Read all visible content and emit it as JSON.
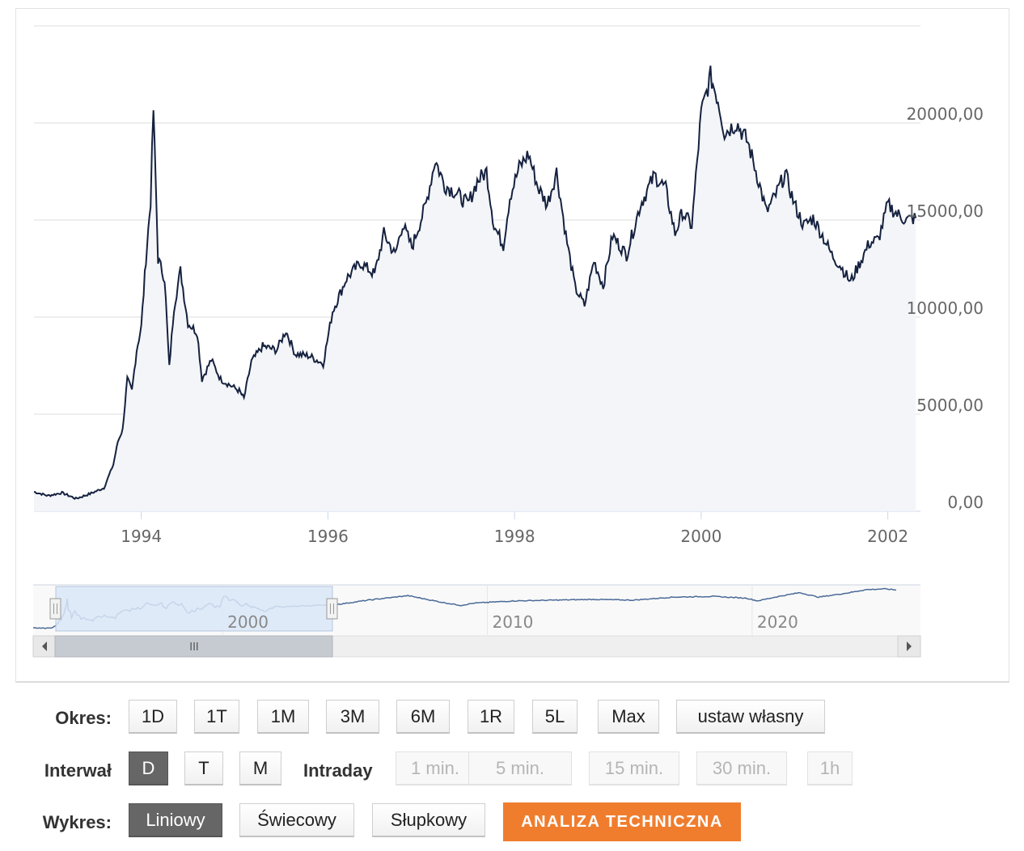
{
  "chart_data": {
    "type": "line",
    "title": "",
    "xlabel": "",
    "ylabel": "",
    "ylim": [
      0,
      25000
    ],
    "grid": true,
    "y_ticks": [
      "0,00",
      "5000,00",
      "10000,00",
      "15000,00",
      "20000,00"
    ],
    "x_ticks": [
      "1994",
      "1996",
      "1998",
      "2000",
      "2002"
    ],
    "series": [
      {
        "values_xy": [
          [
            1992.85,
            1000
          ],
          [
            1993.0,
            800
          ],
          [
            1993.15,
            950
          ],
          [
            1993.3,
            650
          ],
          [
            1993.45,
            900
          ],
          [
            1993.6,
            1200
          ],
          [
            1993.7,
            2400
          ],
          [
            1993.75,
            3600
          ],
          [
            1993.8,
            4200
          ],
          [
            1993.85,
            6800
          ],
          [
            1993.9,
            6200
          ],
          [
            1993.95,
            8300
          ],
          [
            1994.0,
            9500
          ],
          [
            1994.05,
            13000
          ],
          [
            1994.1,
            16000
          ],
          [
            1994.13,
            20700
          ],
          [
            1994.18,
            13000
          ],
          [
            1994.25,
            12000
          ],
          [
            1994.3,
            7400
          ],
          [
            1994.35,
            10500
          ],
          [
            1994.42,
            12400
          ],
          [
            1994.5,
            9700
          ],
          [
            1994.6,
            9200
          ],
          [
            1994.65,
            6800
          ],
          [
            1994.75,
            7800
          ],
          [
            1994.85,
            6800
          ],
          [
            1994.95,
            6500
          ],
          [
            1995.05,
            6200
          ],
          [
            1995.1,
            5800
          ],
          [
            1995.18,
            7700
          ],
          [
            1995.3,
            8500
          ],
          [
            1995.45,
            8300
          ],
          [
            1995.55,
            9300
          ],
          [
            1995.65,
            8100
          ],
          [
            1995.8,
            8000
          ],
          [
            1995.95,
            7600
          ],
          [
            1996.05,
            10300
          ],
          [
            1996.2,
            12000
          ],
          [
            1996.35,
            12800
          ],
          [
            1996.5,
            12200
          ],
          [
            1996.6,
            14300
          ],
          [
            1996.72,
            13200
          ],
          [
            1996.8,
            14800
          ],
          [
            1996.9,
            13600
          ],
          [
            1997.05,
            15800
          ],
          [
            1997.15,
            18100
          ],
          [
            1997.25,
            16800
          ],
          [
            1997.35,
            16500
          ],
          [
            1997.5,
            15800
          ],
          [
            1997.6,
            17000
          ],
          [
            1997.7,
            17500
          ],
          [
            1997.78,
            14700
          ],
          [
            1997.88,
            13700
          ],
          [
            1997.95,
            16200
          ],
          [
            1998.05,
            17700
          ],
          [
            1998.15,
            18400
          ],
          [
            1998.25,
            16700
          ],
          [
            1998.35,
            15800
          ],
          [
            1998.45,
            17500
          ],
          [
            1998.55,
            14200
          ],
          [
            1998.65,
            11500
          ],
          [
            1998.75,
            10600
          ],
          [
            1998.85,
            12900
          ],
          [
            1998.95,
            11600
          ],
          [
            1999.05,
            14200
          ],
          [
            1999.2,
            13200
          ],
          [
            1999.35,
            15800
          ],
          [
            1999.5,
            17300
          ],
          [
            1999.62,
            16600
          ],
          [
            1999.72,
            14300
          ],
          [
            1999.8,
            15400
          ],
          [
            1999.9,
            14700
          ],
          [
            2000.0,
            20500
          ],
          [
            2000.1,
            22400
          ],
          [
            2000.18,
            21200
          ],
          [
            2000.25,
            19500
          ],
          [
            2000.38,
            20000
          ],
          [
            2000.5,
            19000
          ],
          [
            2000.6,
            17300
          ],
          [
            2000.7,
            15400
          ],
          [
            2000.8,
            16300
          ],
          [
            2000.9,
            17400
          ],
          [
            2001.0,
            15800
          ],
          [
            2001.1,
            14700
          ],
          [
            2001.2,
            15100
          ],
          [
            2001.3,
            14200
          ],
          [
            2001.4,
            13200
          ],
          [
            2001.5,
            12600
          ],
          [
            2001.6,
            11800
          ],
          [
            2001.7,
            12800
          ],
          [
            2001.8,
            13800
          ],
          [
            2001.9,
            14000
          ],
          [
            2002.0,
            15800
          ],
          [
            2002.1,
            15300
          ],
          [
            2002.2,
            15000
          ],
          [
            2002.3,
            15100
          ]
        ]
      }
    ],
    "navigator_ticks": [
      "2000",
      "2010",
      "2020"
    ]
  },
  "controls": {
    "okres_label": "Okres:",
    "okres_buttons": [
      "1D",
      "1T",
      "1M",
      "3M",
      "6M",
      "1R",
      "5L",
      "Max",
      "ustaw własny"
    ],
    "interwal_label": "Interwał",
    "interwal_buttons": [
      "D",
      "T",
      "M"
    ],
    "intraday_label": "Intraday",
    "intraday_buttons": [
      "1 min.",
      "5 min.",
      "15 min.",
      "30 min.",
      "1h"
    ],
    "wykres_label": "Wykres:",
    "wykres_buttons": [
      "Liniowy",
      "Świecowy",
      "Słupkowy"
    ],
    "analysis_button": "ANALIZA TECHNICZNA"
  },
  "colors": {
    "line": "#15213f",
    "area": "#f3f5f8",
    "accent": "#f07d2e",
    "navigator_line": "#4a6a98",
    "navigator_window": "#dbe7f8"
  },
  "scrollbar": {
    "grip_icon": "III"
  }
}
